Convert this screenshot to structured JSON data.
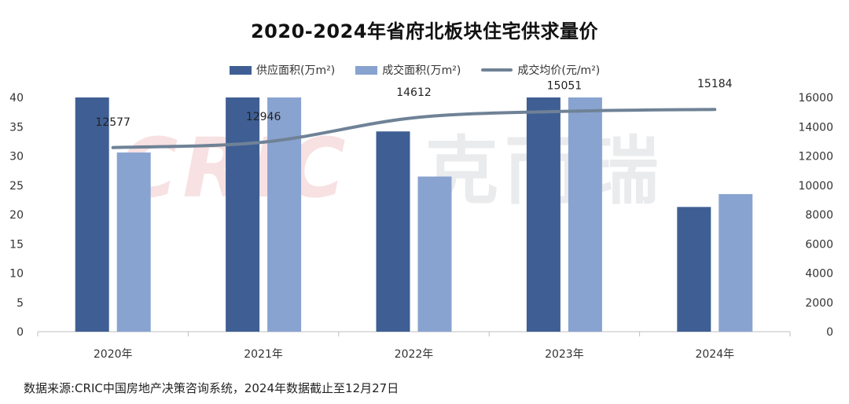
{
  "chart_data": {
    "type": "bar",
    "title": "2020-2024年省府北板块住宅供求量价",
    "categories": [
      "2020年",
      "2021年",
      "2022年",
      "2023年",
      "2024年"
    ],
    "series": [
      {
        "name": "供应面积(万m²)",
        "kind": "bar",
        "axis": "left",
        "color": "#3f5f94",
        "values": [
          40.1,
          40.5,
          34.2,
          40.3,
          21.3
        ]
      },
      {
        "name": "成交面积(万m²)",
        "kind": "bar",
        "axis": "left",
        "color": "#89a3d0",
        "values": [
          30.6,
          40.4,
          26.5,
          40.4,
          23.5
        ]
      },
      {
        "name": "成交均价(元/m²)",
        "kind": "line",
        "axis": "right",
        "color": "#6f8296",
        "values": [
          12577,
          12946,
          14612,
          15051,
          15184
        ]
      }
    ],
    "y_left": {
      "min": 0,
      "max": 40,
      "ticks": [
        0,
        5,
        10,
        15,
        20,
        25,
        30,
        35,
        40
      ]
    },
    "y_right": {
      "min": 0,
      "max": 16000,
      "ticks": [
        0,
        2000,
        4000,
        6000,
        8000,
        10000,
        12000,
        14000,
        16000
      ]
    },
    "data_labels": [
      "12577",
      "12946",
      "14612",
      "15051",
      "15184"
    ],
    "legend_position": "top-center",
    "grid": false
  },
  "watermark": {
    "latin": "CRIC",
    "cjk": "克而瑞"
  },
  "footnote": "数据来源:CRIC中国房地产决策咨询系统，2024年数据截止至12月27日"
}
